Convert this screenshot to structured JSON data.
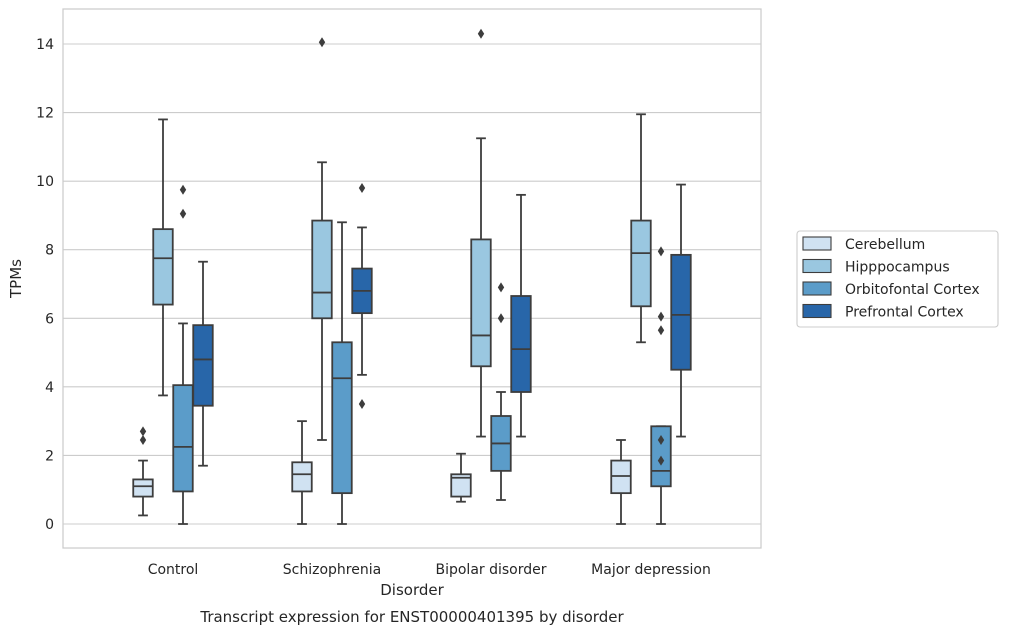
{
  "chart_data": {
    "type": "box",
    "caption": "Transcript expression for ENST00000401395 by disorder",
    "xlabel": "Disorder",
    "ylabel": "TPMs",
    "ylim": [
      -0.7,
      15
    ],
    "yticks": [
      0,
      2,
      4,
      6,
      8,
      10,
      12,
      14
    ],
    "grid": "horizontal",
    "legend_position": "right",
    "categories": [
      "Control",
      "Schizophrenia",
      "Bipolar disorder",
      "Major depression"
    ],
    "series": [
      {
        "name": "Cerebellum",
        "color": "#d0e2f2",
        "boxes": [
          {
            "whislo": 0.25,
            "q1": 0.8,
            "med": 1.1,
            "q3": 1.3,
            "whishi": 1.85,
            "fliers": [
              2.45,
              2.7
            ]
          },
          {
            "whislo": 0.0,
            "q1": 0.95,
            "med": 1.45,
            "q3": 1.8,
            "whishi": 3.0,
            "fliers": []
          },
          {
            "whislo": 0.65,
            "q1": 0.8,
            "med": 1.35,
            "q3": 1.45,
            "whishi": 2.05,
            "fliers": []
          },
          {
            "whislo": 0.0,
            "q1": 0.9,
            "med": 1.4,
            "q3": 1.85,
            "whishi": 2.45,
            "fliers": []
          }
        ]
      },
      {
        "name": "Hipppocampus",
        "color": "#9ac7e0",
        "boxes": [
          {
            "whislo": 3.75,
            "q1": 6.4,
            "med": 7.75,
            "q3": 8.6,
            "whishi": 11.8,
            "fliers": []
          },
          {
            "whislo": 2.45,
            "q1": 6.0,
            "med": 6.75,
            "q3": 8.85,
            "whishi": 10.55,
            "fliers": [
              14.05
            ]
          },
          {
            "whislo": 2.55,
            "q1": 4.6,
            "med": 5.5,
            "q3": 8.3,
            "whishi": 11.25,
            "fliers": [
              14.3
            ]
          },
          {
            "whislo": 5.3,
            "q1": 6.35,
            "med": 7.9,
            "q3": 8.85,
            "whishi": 11.95,
            "fliers": []
          }
        ]
      },
      {
        "name": "Orbitofontal Cortex",
        "color": "#5b9cc9",
        "boxes": [
          {
            "whislo": 0.0,
            "q1": 0.95,
            "med": 2.25,
            "q3": 4.05,
            "whishi": 5.85,
            "fliers": [
              9.05,
              9.75
            ]
          },
          {
            "whislo": 0.0,
            "q1": 0.9,
            "med": 4.25,
            "q3": 5.3,
            "whishi": 8.8,
            "fliers": []
          },
          {
            "whislo": 0.7,
            "q1": 1.55,
            "med": 2.35,
            "q3": 3.15,
            "whishi": 3.85,
            "fliers": [
              6.0,
              6.9
            ]
          },
          {
            "whislo": 0.0,
            "q1": 1.1,
            "med": 1.55,
            "q3": 2.85,
            "whishi": 2.85,
            "fliers": [
              1.85,
              2.45,
              5.65,
              6.05,
              7.95
            ]
          }
        ]
      },
      {
        "name": "Prefrontal Cortex",
        "color": "#2866a9",
        "boxes": [
          {
            "whislo": 1.7,
            "q1": 3.45,
            "med": 4.8,
            "q3": 5.8,
            "whishi": 7.65,
            "fliers": []
          },
          {
            "whislo": 4.35,
            "q1": 6.15,
            "med": 6.8,
            "q3": 7.45,
            "whishi": 8.65,
            "fliers": [
              3.5,
              9.8
            ]
          },
          {
            "whislo": 2.55,
            "q1": 3.85,
            "med": 5.1,
            "q3": 6.65,
            "whishi": 9.6,
            "fliers": []
          },
          {
            "whislo": 2.55,
            "q1": 4.5,
            "med": 6.1,
            "q3": 7.85,
            "whishi": 9.9,
            "fliers": []
          }
        ]
      }
    ]
  }
}
